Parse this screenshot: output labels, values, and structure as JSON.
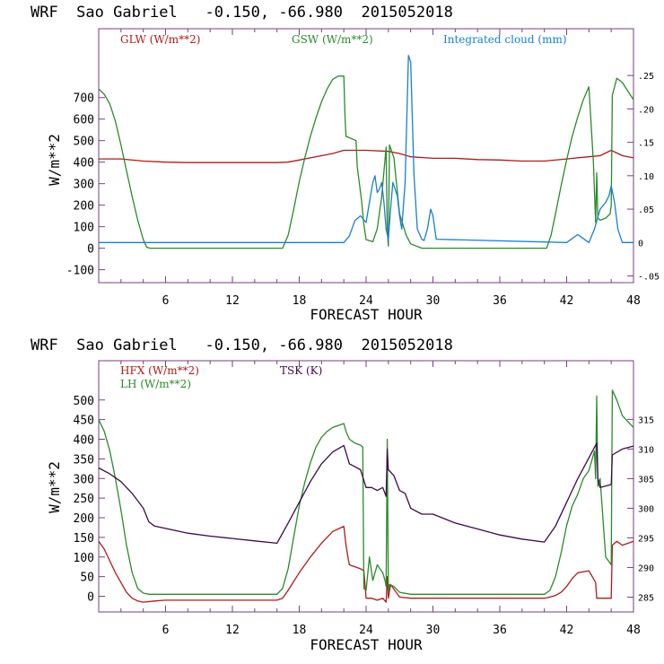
{
  "chart_data": [
    {
      "type": "line",
      "title": "WRF  Sao Gabriel   -0.150, -66.980  2015052018",
      "xlabel": "FORECAST HOUR",
      "ylabel": "W/m**2",
      "xlim": [
        0,
        48
      ],
      "ylim": [
        -160,
        1020
      ],
      "xticks": [
        6,
        12,
        18,
        24,
        30,
        36,
        42,
        48
      ],
      "yticks": [
        -100,
        0,
        100,
        200,
        300,
        400,
        500,
        600,
        700
      ],
      "ylim_right": [
        -0.06,
        0.32
      ],
      "yticks_right": [
        -0.05,
        0,
        0.05,
        0.1,
        0.15,
        0.2,
        0.25
      ],
      "ytick_labels_right": [
        "-.05",
        "0",
        ".05",
        ".10",
        ".15",
        ".20",
        ".25"
      ],
      "series": [
        {
          "name": "GLW (W/m**2)",
          "color": "#b01a1a",
          "axis": "left",
          "x": [
            0,
            2,
            4,
            6,
            8,
            10,
            12,
            14,
            16,
            17,
            18,
            19,
            20,
            21,
            22,
            24,
            26,
            27,
            28,
            30,
            32,
            34,
            36,
            38,
            40,
            42,
            44,
            45,
            46,
            47,
            48
          ],
          "y": [
            415,
            415,
            405,
            400,
            398,
            398,
            398,
            398,
            398,
            400,
            410,
            420,
            430,
            440,
            455,
            455,
            450,
            440,
            425,
            418,
            418,
            412,
            410,
            405,
            405,
            415,
            425,
            430,
            455,
            430,
            420
          ]
        },
        {
          "name": "GSW (W/m**2)",
          "color": "#2b8a2b",
          "axis": "left",
          "x": [
            0,
            0.5,
            1,
            1.5,
            2,
            2.5,
            3,
            3.5,
            4,
            4.3,
            4.6,
            16.5,
            17,
            17.5,
            18,
            18.5,
            19,
            19.5,
            20,
            20.5,
            21,
            21.5,
            22,
            22.1,
            22.2,
            23.1,
            23.2,
            23.6,
            23.8,
            24,
            24.6,
            25,
            25.4,
            25.8,
            25.9,
            26,
            26.1,
            26.5,
            27,
            27.3,
            27.6,
            28,
            29,
            30,
            40.2,
            40.6,
            41,
            41.5,
            42,
            42.5,
            43,
            43.5,
            44,
            44.4,
            44.6,
            44.7,
            44.8,
            45,
            45.5,
            45.9,
            46,
            46.1,
            46.5,
            47,
            47.5,
            48
          ],
          "y": [
            740,
            715,
            670,
            590,
            480,
            360,
            240,
            130,
            40,
            5,
            0,
            0,
            60,
            180,
            310,
            420,
            520,
            605,
            680,
            740,
            785,
            800,
            800,
            620,
            520,
            500,
            380,
            220,
            110,
            40,
            30,
            90,
            240,
            470,
            80,
            10,
            480,
            420,
            160,
            110,
            60,
            20,
            0,
            0,
            0,
            60,
            160,
            290,
            410,
            520,
            610,
            690,
            750,
            400,
            120,
            350,
            140,
            130,
            140,
            160,
            200,
            710,
            790,
            770,
            730,
            690
          ]
        },
        {
          "name": "Integrated cloud (mm)",
          "color": "#1a7fd1",
          "axis": "right",
          "x": [
            0,
            22,
            22.5,
            23,
            23.5,
            24,
            24.3,
            24.6,
            24.8,
            25,
            25.2,
            25.4,
            25.6,
            25.8,
            26,
            26.2,
            26.4,
            26.6,
            26.8,
            27,
            27.2,
            27.5,
            27.8,
            28,
            28.3,
            28.6,
            29,
            29.2,
            29.5,
            29.8,
            30,
            30.3,
            42,
            42.5,
            43,
            43.5,
            44,
            44.5,
            45,
            45.5,
            45.8,
            46,
            46.3,
            46.6,
            47,
            48
          ],
          "y": [
            0,
            0,
            0.01,
            0.033,
            0.04,
            0.03,
            0.06,
            0.09,
            0.1,
            0.075,
            0.08,
            0.09,
            0.06,
            0.02,
            0.005,
            0.05,
            0.09,
            0.08,
            0.07,
            0.04,
            0.02,
            0.09,
            0.28,
            0.27,
            0.1,
            0.02,
            0.005,
            0.003,
            0.02,
            0.05,
            0.04,
            0.005,
            0,
            0.006,
            0.012,
            0.006,
            0,
            0.02,
            0.05,
            0.06,
            0.07,
            0.085,
            0.06,
            0.02,
            0,
            0
          ]
        }
      ]
    },
    {
      "type": "line",
      "title": "WRF  Sao Gabriel   -0.150, -66.980  2015052018",
      "xlabel": "FORECAST HOUR",
      "ylabel": "W/m**2",
      "xlim": [
        0,
        48
      ],
      "ylim": [
        -40,
        600
      ],
      "xticks": [
        6,
        12,
        18,
        24,
        30,
        36,
        42,
        48
      ],
      "yticks": [
        0,
        50,
        100,
        150,
        200,
        250,
        300,
        350,
        400,
        450,
        500
      ],
      "ylim_right": [
        282.5,
        324.9
      ],
      "yticks_right": [
        285,
        290,
        295,
        300,
        305,
        310,
        315
      ],
      "series": [
        {
          "name": "HFX (W/m**2)",
          "color": "#b01a1a",
          "axis": "left",
          "x": [
            0,
            0.5,
            1,
            1.5,
            2,
            2.5,
            3,
            3.5,
            4,
            5,
            6,
            10,
            14,
            16,
            16.5,
            17,
            18,
            19,
            20,
            21,
            22,
            22.2,
            22.4,
            22.5,
            23.5,
            23.8,
            24,
            24.5,
            25,
            25.5,
            25.8,
            25.9,
            26,
            26.2,
            27,
            28,
            30,
            36,
            40,
            40.5,
            41,
            41.5,
            42,
            42.5,
            43,
            44,
            44.6,
            44.7,
            44.8,
            45,
            46,
            46.1,
            46.5,
            47,
            48
          ],
          "y": [
            140,
            120,
            90,
            60,
            35,
            10,
            -5,
            -12,
            -15,
            -12,
            -10,
            -10,
            -10,
            -10,
            -5,
            15,
            60,
            100,
            135,
            165,
            178,
            130,
            95,
            80,
            70,
            65,
            -5,
            -5,
            -10,
            -5,
            -15,
            50,
            -5,
            30,
            -2,
            -5,
            -5,
            -5,
            -5,
            -2,
            2,
            10,
            25,
            45,
            60,
            65,
            35,
            -5,
            -5,
            -5,
            -5,
            130,
            140,
            130,
            140
          ]
        },
        {
          "name": "LH (W/m**2)",
          "color": "#2b8a2b",
          "axis": "left",
          "x": [
            0,
            0.5,
            1,
            1.5,
            2,
            2.5,
            3,
            3.5,
            4,
            4.5,
            5,
            6,
            10,
            14,
            16,
            16.5,
            17,
            17.5,
            18,
            18.5,
            19,
            19.5,
            20,
            20.5,
            21,
            21.5,
            22,
            22.2,
            22.5,
            23,
            23.5,
            23.7,
            23.8,
            24,
            24.3,
            24.6,
            25,
            25.5,
            25.7,
            25.8,
            25.9,
            26,
            26.1,
            26.5,
            27,
            28,
            30,
            36,
            40,
            40.5,
            41,
            41.5,
            42,
            42.5,
            43,
            43.5,
            44,
            44.5,
            44.6,
            44.7,
            44.8,
            45,
            45.5,
            46,
            46.1,
            46.5,
            47,
            48
          ],
          "y": [
            450,
            420,
            370,
            300,
            220,
            130,
            60,
            20,
            8,
            5,
            5,
            5,
            5,
            5,
            5,
            20,
            70,
            150,
            230,
            290,
            340,
            380,
            405,
            420,
            430,
            435,
            440,
            420,
            400,
            390,
            385,
            380,
            20,
            15,
            100,
            40,
            80,
            60,
            40,
            25,
            400,
            10,
            30,
            25,
            10,
            5,
            5,
            5,
            5,
            15,
            50,
            110,
            180,
            230,
            260,
            300,
            320,
            370,
            300,
            510,
            280,
            300,
            100,
            80,
            525,
            500,
            460,
            430
          ]
        },
        {
          "name": "TSK (K)",
          "color": "#3d0a4a",
          "axis": "right",
          "x": [
            0,
            1,
            2,
            3,
            4,
            4.5,
            5,
            6,
            8,
            10,
            12,
            14,
            16,
            17,
            18,
            19,
            20,
            21,
            22,
            22.5,
            23,
            23.5,
            24,
            24.5,
            25,
            25.5,
            25.8,
            25.9,
            26,
            26.5,
            27,
            27.5,
            28,
            29,
            30,
            32,
            34,
            36,
            38,
            40,
            41,
            42,
            43,
            44,
            44.7,
            44.8,
            45,
            46,
            46.1,
            47,
            48
          ],
          "y": [
            306.8,
            305.8,
            304.5,
            302.5,
            300.0,
            297.7,
            297.0,
            296.6,
            295.8,
            295.3,
            294.9,
            294.5,
            294.1,
            297.5,
            301.0,
            304.5,
            307.5,
            309.5,
            310.6,
            307.5,
            307.0,
            306.5,
            303.5,
            303.5,
            303.0,
            303.5,
            302.0,
            310.0,
            306.5,
            305.5,
            303.0,
            302.5,
            300.0,
            299.0,
            299.0,
            297.5,
            296.5,
            295.5,
            294.8,
            294.3,
            297.0,
            301.0,
            305.0,
            308.5,
            311.0,
            305.0,
            303.5,
            304.0,
            309.0,
            310.0,
            310.5
          ]
        }
      ]
    }
  ]
}
